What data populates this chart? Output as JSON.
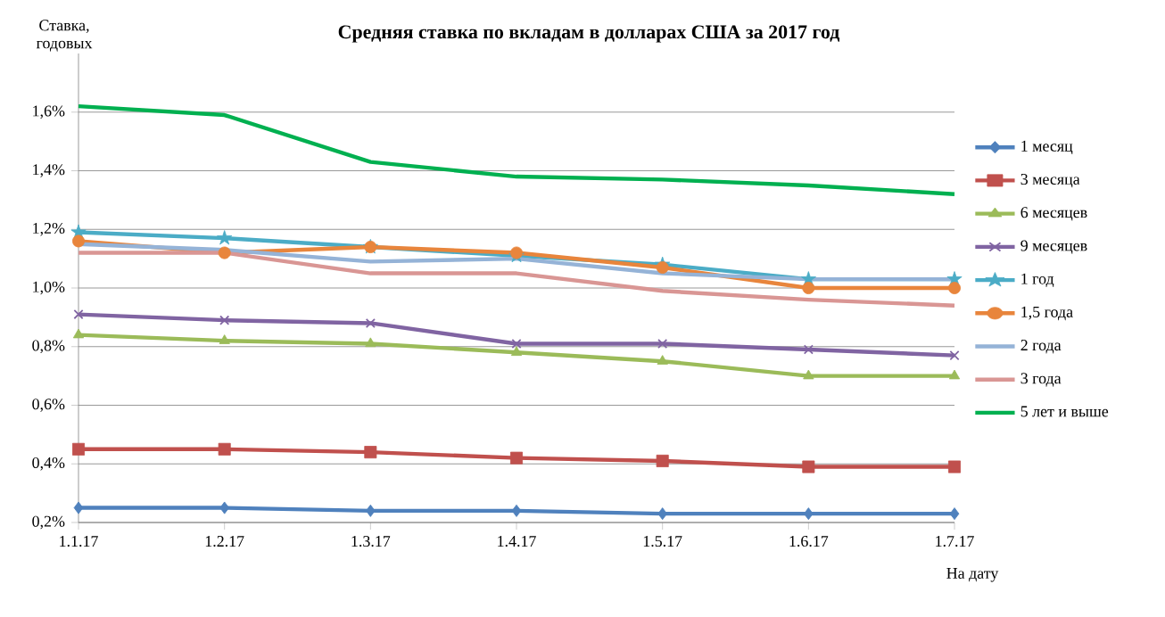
{
  "chart_data": {
    "type": "line",
    "title": "Средняя ставка по вкладам в долларах США за 2017 год",
    "ylabel": "Ставка, годовых",
    "xlabel": "На дату",
    "categories": [
      "1.1.17",
      "1.2.17",
      "1.3.17",
      "1.4.17",
      "1.5.17",
      "1.6.17",
      "1.7.17"
    ],
    "ylim": [
      0.2,
      1.8
    ],
    "yticks": [
      {
        "value": 0.2,
        "label": "0,2%"
      },
      {
        "value": 0.4,
        "label": "0,4%"
      },
      {
        "value": 0.6,
        "label": "0,6%"
      },
      {
        "value": 0.8,
        "label": "0,8%"
      },
      {
        "value": 1.0,
        "label": "1,0%"
      },
      {
        "value": 1.2,
        "label": "1,2%"
      },
      {
        "value": 1.4,
        "label": "1,4%"
      },
      {
        "value": 1.6,
        "label": "1,6%"
      }
    ],
    "grid": "y",
    "legend": "right",
    "series": [
      {
        "name": "1 месяц",
        "color": "#4f81bd",
        "marker": "diamond",
        "values": [
          0.25,
          0.25,
          0.24,
          0.24,
          0.23,
          0.23,
          0.23
        ]
      },
      {
        "name": "3 месяца",
        "color": "#c0504d",
        "marker": "square",
        "values": [
          0.45,
          0.45,
          0.44,
          0.42,
          0.41,
          0.39,
          0.39
        ]
      },
      {
        "name": "6 месяцев",
        "color": "#9bbb59",
        "marker": "triangle",
        "values": [
          0.84,
          0.82,
          0.81,
          0.78,
          0.75,
          0.7,
          0.7
        ]
      },
      {
        "name": "9 месяцев",
        "color": "#8064a2",
        "marker": "cross",
        "values": [
          0.91,
          0.89,
          0.88,
          0.81,
          0.81,
          0.79,
          0.77
        ]
      },
      {
        "name": "1 год",
        "color": "#4bacc6",
        "marker": "star",
        "values": [
          1.19,
          1.17,
          1.14,
          1.11,
          1.08,
          1.03,
          1.03
        ]
      },
      {
        "name": "1,5 года",
        "color": "#e8853c",
        "marker": "circle",
        "values": [
          1.16,
          1.12,
          1.14,
          1.12,
          1.07,
          1.0,
          1.0
        ]
      },
      {
        "name": "2 года",
        "color": "#95b3d7",
        "marker": "none",
        "values": [
          1.15,
          1.13,
          1.09,
          1.1,
          1.05,
          1.03,
          1.03
        ]
      },
      {
        "name": "3 года",
        "color": "#d99694",
        "marker": "none",
        "values": [
          1.12,
          1.12,
          1.05,
          1.05,
          0.99,
          0.96,
          0.94
        ]
      },
      {
        "name": "5 лет и выше",
        "color": "#00b050",
        "marker": "none",
        "values": [
          1.62,
          1.59,
          1.43,
          1.38,
          1.37,
          1.35,
          1.32
        ]
      }
    ]
  }
}
